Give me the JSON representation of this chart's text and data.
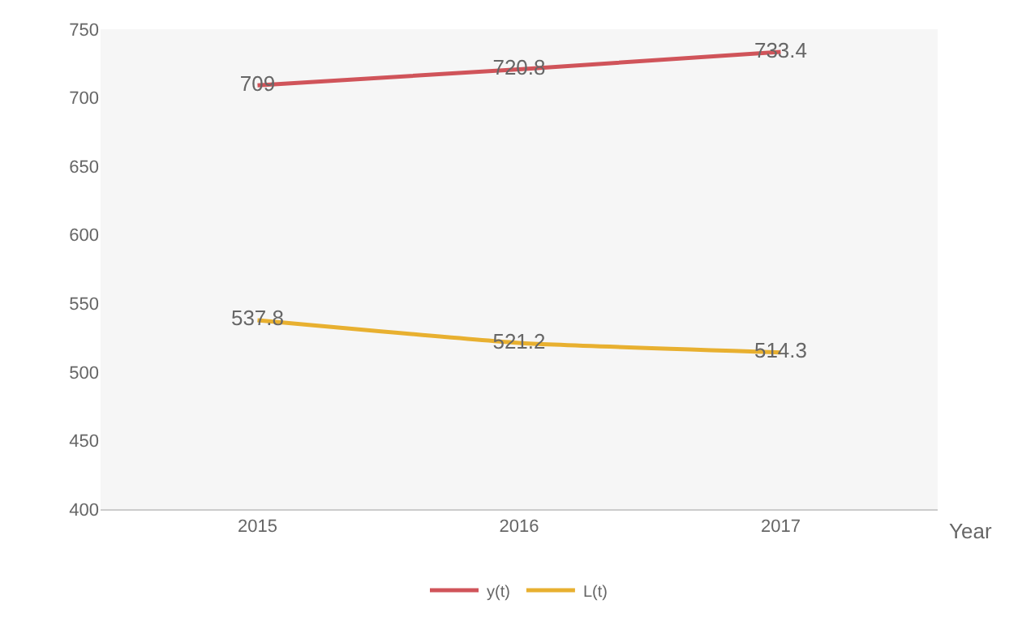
{
  "chart_data": {
    "type": "line",
    "xlabel": "Year",
    "categories": [
      "2015",
      "2016",
      "2017"
    ],
    "series": [
      {
        "name": "y(t)",
        "color": "#d0545a",
        "values": [
          709,
          720.8,
          733.4
        ]
      },
      {
        "name": "L(t)",
        "color": "#e8b030",
        "values": [
          537.8,
          521.2,
          514.3
        ]
      }
    ],
    "ylim": [
      400,
      750
    ],
    "yticks": [
      400,
      450,
      500,
      550,
      600,
      650,
      700,
      750
    ],
    "data_labels": true,
    "grid": false,
    "legend": "bottom",
    "marker": "none"
  }
}
